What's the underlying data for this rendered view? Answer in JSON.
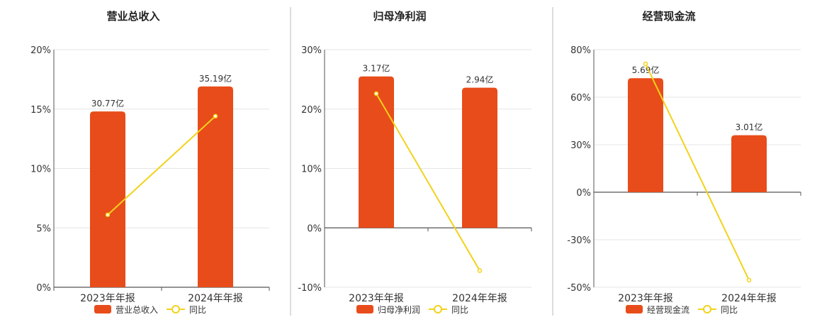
{
  "colors": {
    "bar": "#e84c1a",
    "line": "#f2d21b",
    "text": "#333333",
    "axis": "#555555",
    "grid": "#e6e6e6",
    "divider": "#bbbbbb"
  },
  "legend": {
    "line_label": "同比"
  },
  "chart_data": [
    {
      "type": "bar",
      "title": "营业总收入",
      "categories": [
        "2023年年报",
        "2024年年报"
      ],
      "y_ticks": [
        "20%",
        "15%",
        "10%",
        "5%",
        "0%"
      ],
      "ylim": [
        0,
        20
      ],
      "y_ticks_values": [
        20,
        15,
        10,
        5,
        0
      ],
      "bar_labels": [
        "30.77亿",
        "35.19亿"
      ],
      "series": [
        {
          "name": "营业总收入",
          "kind": "bar",
          "values": [
            14.8,
            16.9
          ]
        },
        {
          "name": "同比",
          "kind": "line",
          "values": [
            6.1,
            14.4
          ]
        }
      ],
      "grid": true,
      "legend_position": "bottom"
    },
    {
      "type": "bar",
      "title": "归母净利润",
      "categories": [
        "2023年年报",
        "2024年年报"
      ],
      "y_ticks": [
        "30%",
        "20%",
        "10%",
        "0%",
        "-10%"
      ],
      "ylim": [
        -10,
        30
      ],
      "y_ticks_values": [
        30,
        20,
        10,
        0,
        -10
      ],
      "bar_labels": [
        "3.17亿",
        "2.94亿"
      ],
      "series": [
        {
          "name": "归母净利润",
          "kind": "bar",
          "values": [
            25.5,
            23.6
          ]
        },
        {
          "name": "同比",
          "kind": "line",
          "values": [
            22.6,
            -7.2
          ]
        }
      ],
      "grid": true,
      "legend_position": "bottom"
    },
    {
      "type": "bar",
      "title": "经营现金流",
      "categories": [
        "2023年年报",
        "2024年年报"
      ],
      "y_ticks": [
        "80%",
        "60%",
        "30%",
        "0%",
        "-30%",
        "-50%"
      ],
      "ylim": [
        -50,
        80
      ],
      "y_ticks_values": [
        80,
        60,
        30,
        0,
        -30,
        -50
      ],
      "bar_labels": [
        "5.69亿",
        "3.01亿"
      ],
      "series": [
        {
          "name": "经营现金流",
          "kind": "bar",
          "values": [
            68,
            36
          ]
        },
        {
          "name": "同比",
          "kind": "line",
          "values": [
            74,
            -47
          ]
        }
      ],
      "grid": true,
      "legend_position": "bottom"
    }
  ]
}
